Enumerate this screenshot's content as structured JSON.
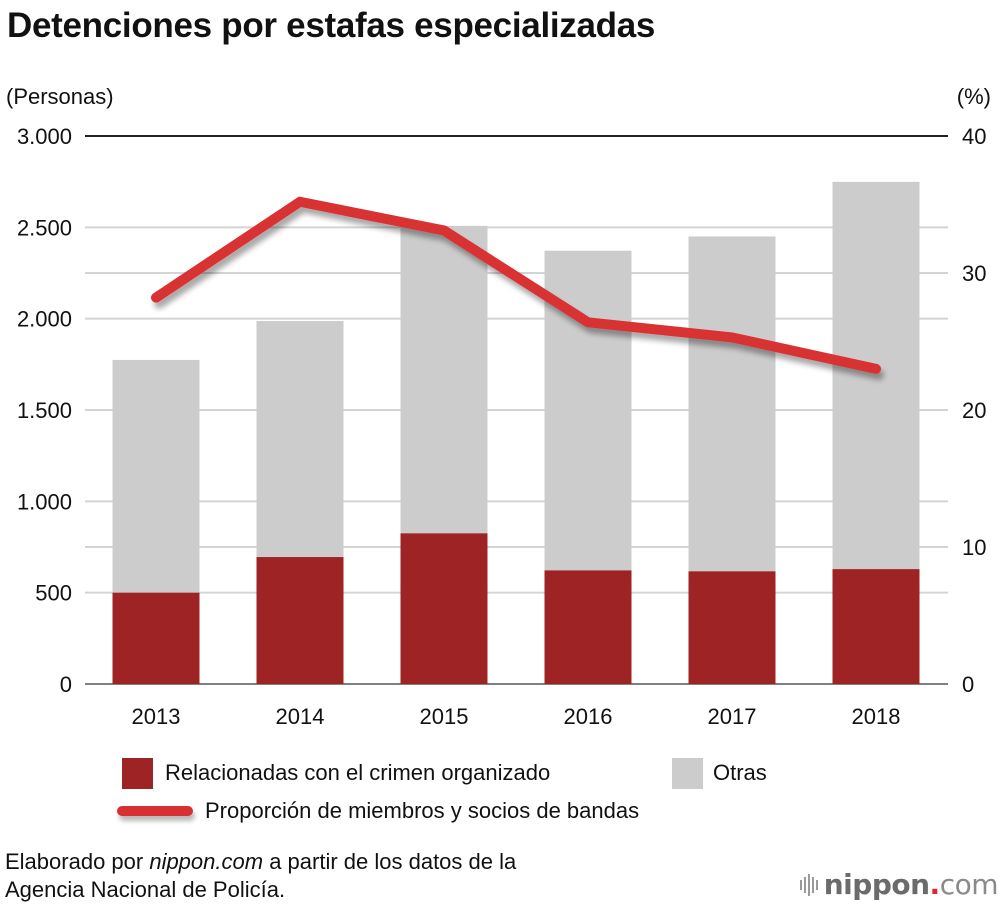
{
  "colors": {
    "organized": "#9e2325",
    "others": "#cccccc",
    "line": "#d83032",
    "grid": "#d4d4d4",
    "axis_top": "#222222",
    "baseline": "#808080"
  },
  "chart_data": {
    "type": "bar",
    "stacked": true,
    "title": "Detenciones por estafas especializadas",
    "ylabel": "(Personas)",
    "y2label": "(%)",
    "xlabel": "",
    "categories": [
      "2013",
      "2014",
      "2015",
      "2016",
      "2017",
      "2018"
    ],
    "ylim": [
      0,
      3000
    ],
    "y2lim": [
      0,
      40
    ],
    "yticks": [
      0,
      500,
      1000,
      1500,
      2000,
      2500,
      3000
    ],
    "ytick_labels": [
      "0",
      "500",
      "1.000",
      "1.500",
      "2.000",
      "2.500",
      "3.000"
    ],
    "y2ticks": [
      0,
      10,
      20,
      30,
      40
    ],
    "y2tick_labels": [
      "0",
      "10",
      "20",
      "30",
      "40"
    ],
    "grid": true,
    "series": [
      {
        "name": "Relacionadas con el crimen organizado",
        "type": "bar",
        "axis": "left",
        "values": [
          500,
          695,
          825,
          622,
          617,
          629
        ]
      },
      {
        "name": "Otras",
        "type": "bar",
        "axis": "left",
        "values": [
          1274,
          1292,
          1683,
          1750,
          1833,
          2120
        ]
      },
      {
        "name": "Proporción de miembros y socios de bandas",
        "type": "line",
        "axis": "right",
        "values": [
          28.2,
          35.2,
          33.1,
          26.4,
          25.3,
          23.0
        ]
      }
    ],
    "totals": [
      1774,
      1987,
      2508,
      2372,
      2450,
      2749
    ],
    "legend_position": "bottom"
  },
  "legend": {
    "organized": "Relacionadas con el crimen organizado",
    "others": "Otras",
    "line": "Proporción de miembros y socios de bandas"
  },
  "source": {
    "prefix": "Elaborado por ",
    "site": "nippon.com",
    "suffix_line1": " a partir de los datos de la",
    "line2": "Agencia Nacional de Policía."
  },
  "logo": {
    "name": "nippon",
    "dot": ".",
    "tld": "com"
  }
}
